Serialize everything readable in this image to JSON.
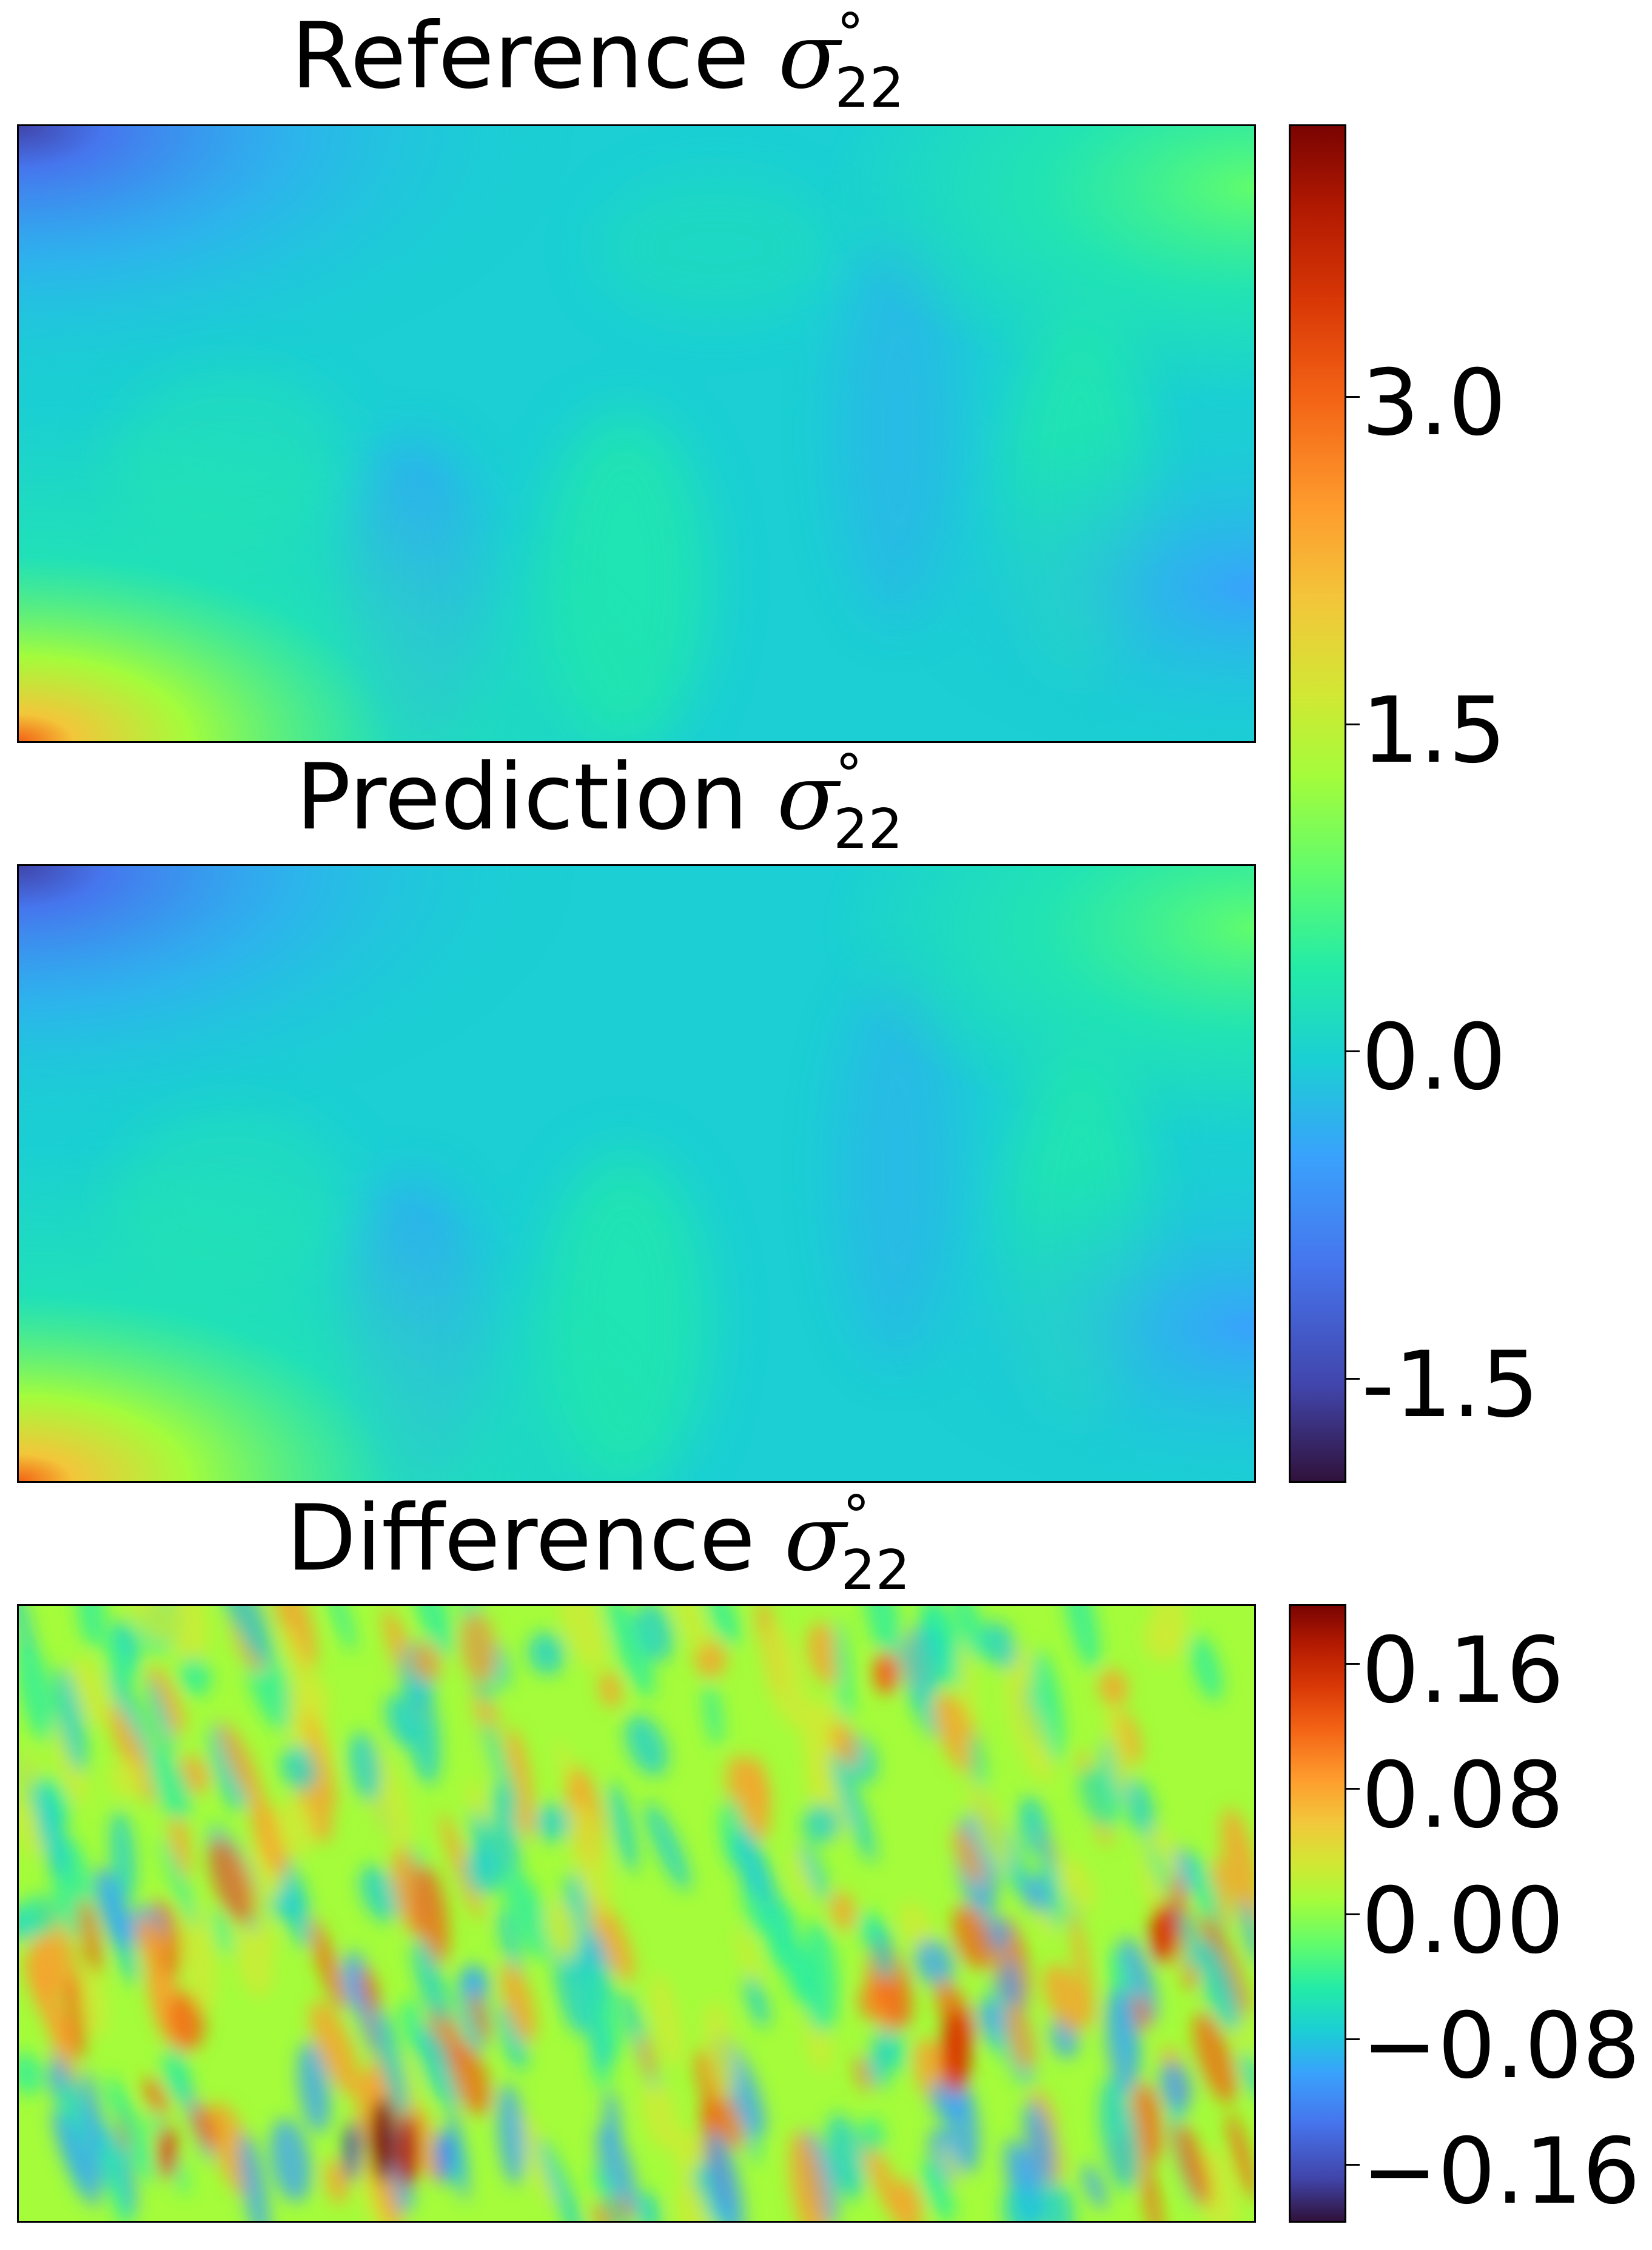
{
  "titles": {
    "reference": "Reference",
    "prediction": "Prediction",
    "difference": "Difference",
    "symbol": "σ",
    "superscript": "°",
    "subscript": "22"
  },
  "chart_data": [
    {
      "type": "heatmap",
      "title": "Reference σ°22",
      "colormap": "turbo",
      "shared_colorbar": true,
      "colorbar_range": [
        -2.0,
        4.3
      ],
      "colorbar_ticks": [
        "3.0",
        "1.5",
        "0.0",
        "-1.5"
      ],
      "description_values": {
        "typical": 0.0,
        "left_bottom_corner_max": 3.0,
        "left_top_corner_min": -1.0
      }
    },
    {
      "type": "heatmap",
      "title": "Prediction σ°22",
      "colormap": "turbo",
      "shared_colorbar": true,
      "colorbar_range": [
        -2.0,
        4.3
      ],
      "colorbar_ticks": [
        "3.0",
        "1.5",
        "0.0",
        "-1.5"
      ]
    },
    {
      "type": "heatmap",
      "title": "Difference σ°22",
      "colormap": "turbo",
      "colorbar_range": [
        -0.2,
        0.2
      ],
      "colorbar_ticks": [
        "0.16",
        "0.08",
        "0.00",
        "−0.08",
        "−0.16"
      ]
    }
  ],
  "colors": {
    "turbo": [
      "#30123b",
      "#4145ab",
      "#4675ed",
      "#39a2fc",
      "#1bcfd4",
      "#24eca6",
      "#61fc6c",
      "#a4fc3b",
      "#d1e834",
      "#f3c63a",
      "#fe9b2d",
      "#f36315",
      "#d93806",
      "#b11901",
      "#7a0402"
    ]
  }
}
